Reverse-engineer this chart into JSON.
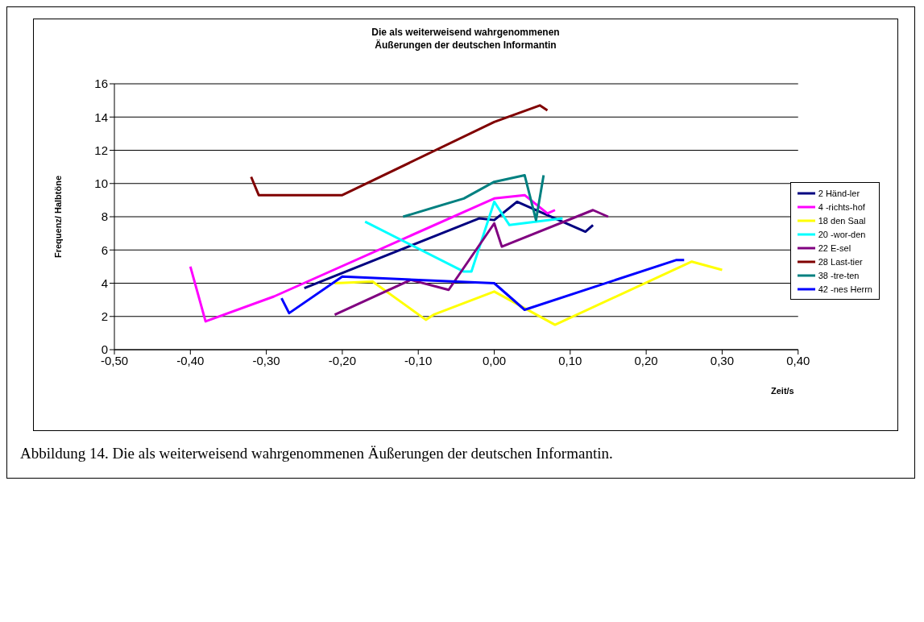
{
  "chart_data": {
    "type": "line",
    "title": "Die als weiterweisend wahrgenommenen\nÄußerungen der deutschen Informantin",
    "xlabel": "Zeit/s",
    "ylabel": "Frequenz/ Halbtöne",
    "xlim": [
      -0.5,
      0.4
    ],
    "xticks": [
      {
        "value": -0.5,
        "label": "-0,50"
      },
      {
        "value": -0.4,
        "label": "-0,40"
      },
      {
        "value": -0.3,
        "label": "-0,30"
      },
      {
        "value": -0.2,
        "label": "-0,20"
      },
      {
        "value": -0.1,
        "label": "-0,10"
      },
      {
        "value": 0,
        "label": "0,00"
      },
      {
        "value": 0.1,
        "label": "0,10"
      },
      {
        "value": 0.2,
        "label": "0,20"
      },
      {
        "value": 0.3,
        "label": "0,30"
      },
      {
        "value": 0.4,
        "label": "0,40"
      }
    ],
    "ylim": [
      0,
      16
    ],
    "yticks": [
      0,
      2,
      4,
      6,
      8,
      10,
      12,
      14,
      16
    ],
    "grid": "y",
    "legend": "right",
    "marker": "none",
    "line_style": "solid",
    "series": [
      {
        "name": "2 Händ-ler",
        "color": "#000080",
        "x": [
          -0.25,
          -0.02,
          0,
          0.03,
          0.12,
          0.13
        ],
        "values": [
          3.7,
          7.9,
          7.8,
          8.9,
          7.1,
          7.5
        ]
      },
      {
        "name": "4 -richts-hof",
        "color": "#ff00ff",
        "x": [
          -0.4,
          -0.38,
          -0.29,
          0,
          0.04,
          0.07,
          0.08
        ],
        "values": [
          5.0,
          1.7,
          3.2,
          9.1,
          9.3,
          8.2,
          8.4
        ]
      },
      {
        "name": "18 den Saal",
        "color": "#ffff00",
        "x": [
          -0.21,
          -0.16,
          -0.09,
          -0.08,
          0,
          0.08,
          0.26,
          0.3
        ],
        "values": [
          4.0,
          4.1,
          1.8,
          2.1,
          3.5,
          1.5,
          5.3,
          4.8
        ]
      },
      {
        "name": "20 -wor-den",
        "color": "#00ffff",
        "x": [
          -0.17,
          -0.04,
          -0.03,
          0,
          0.02,
          0.09
        ],
        "values": [
          7.7,
          4.7,
          4.7,
          8.9,
          7.5,
          7.9
        ]
      },
      {
        "name": "22 E-sel",
        "color": "#800080",
        "x": [
          -0.21,
          -0.11,
          -0.06,
          0,
          0.01,
          0.13,
          0.15
        ],
        "values": [
          2.1,
          4.2,
          3.6,
          7.6,
          6.2,
          8.4,
          8.0
        ]
      },
      {
        "name": "28 Last-tier",
        "color": "#800000",
        "x": [
          -0.32,
          -0.31,
          -0.2,
          0,
          0.06,
          0.07
        ],
        "values": [
          10.4,
          9.3,
          9.3,
          13.7,
          14.7,
          14.4
        ]
      },
      {
        "name": "38 -tre-ten",
        "color": "#008080",
        "x": [
          -0.12,
          -0.04,
          0,
          0.04,
          0.055,
          0.065
        ],
        "values": [
          8.0,
          9.1,
          10.1,
          10.5,
          7.8,
          10.5
        ]
      },
      {
        "name": "42 -nes Herrn",
        "color": "#0000ff",
        "x": [
          -0.28,
          -0.27,
          -0.2,
          0,
          0.04,
          0.24,
          0.25
        ],
        "values": [
          3.1,
          2.2,
          4.4,
          4.0,
          2.4,
          5.4,
          5.4
        ]
      }
    ],
    "annotations": [
      "Abbildung 14. Die als weiterweisend wahrgenommenen Äußerungen der deutschen Informantin."
    ]
  }
}
